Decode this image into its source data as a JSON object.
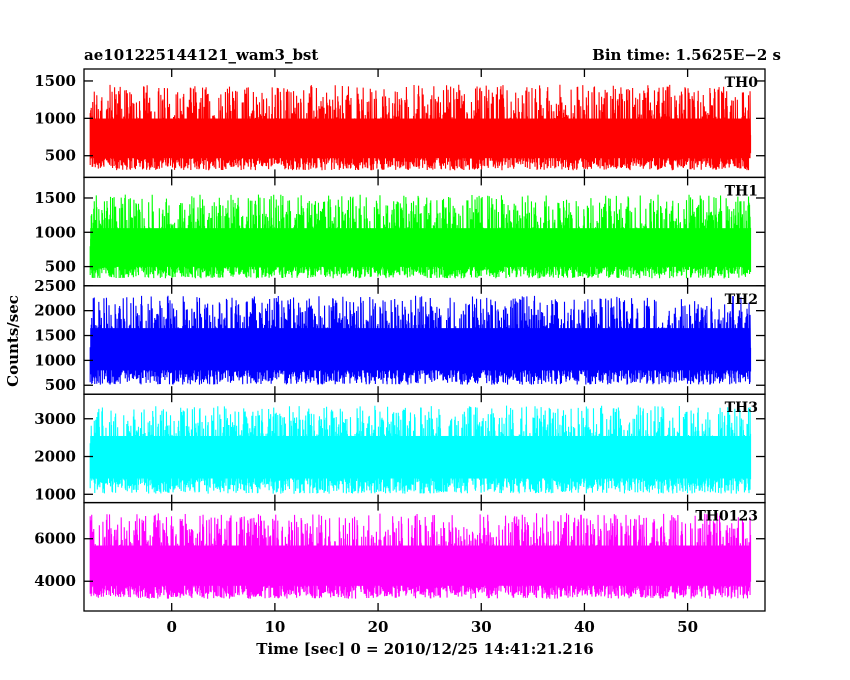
{
  "chart_data": {
    "type": "line",
    "title_left": "ae101225144121_wam3_bst",
    "title_right": "Bin time: 1.5625E−2 s",
    "xlabel": "Time [sec] 0 = 2010/12/25 14:41:21.216",
    "ylabel": "Counts/sec",
    "xlim": [
      -8.5,
      57.5
    ],
    "xticks": [
      0,
      10,
      20,
      30,
      40,
      50
    ],
    "data_x_range": [
      -7.9,
      56.1
    ],
    "grid": false,
    "panels": [
      {
        "name": "TH0",
        "color": "#ff0000",
        "ylim": [
          210,
          1660
        ],
        "yticks": [
          500,
          1000,
          1500
        ],
        "band": [
          260,
          1450
        ],
        "mean": 720
      },
      {
        "name": "TH1",
        "color": "#00ff00",
        "ylim": [
          220,
          1800
        ],
        "yticks": [
          500,
          1000,
          1500
        ],
        "band": [
          280,
          1550
        ],
        "mean": 760
      },
      {
        "name": "TH2",
        "color": "#0000ff",
        "ylim": [
          320,
          2500
        ],
        "yticks": [
          500,
          1000,
          1500,
          2000,
          2500
        ],
        "band": [
          430,
          2300
        ],
        "mean": 1250
      },
      {
        "name": "TH3",
        "color": "#00ffff",
        "ylim": [
          780,
          3650
        ],
        "yticks": [
          1000,
          2000,
          3000
        ],
        "band": [
          900,
          3350
        ],
        "mean": 2050
      },
      {
        "name": "TH0123",
        "color": "#ff00ff",
        "ylim": [
          2600,
          7700
        ],
        "yticks": [
          4000,
          6000
        ],
        "band": [
          3000,
          7200
        ],
        "mean": 4750
      }
    ]
  }
}
